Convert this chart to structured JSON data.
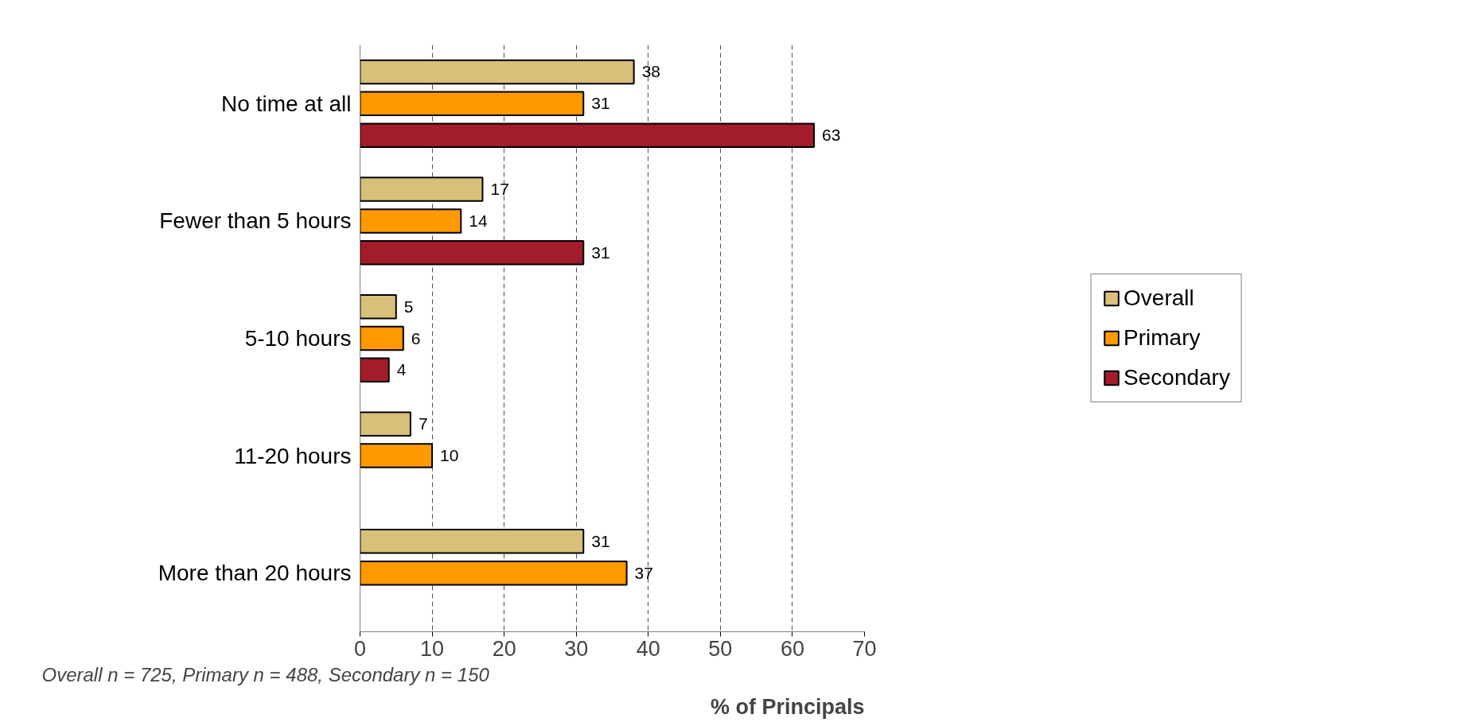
{
  "chart_data": {
    "type": "bar",
    "orientation": "horizontal",
    "categories": [
      "No time at all",
      "Fewer than 5 hours",
      "5-10 hours",
      "11-20 hours",
      "More than 20 hours"
    ],
    "series": [
      {
        "name": "Overall",
        "color": "#d9c07a",
        "values": [
          38,
          17,
          5,
          7,
          31
        ]
      },
      {
        "name": "Primary",
        "color": "#ff9900",
        "values": [
          31,
          14,
          6,
          10,
          37
        ]
      },
      {
        "name": "Secondary",
        "color": "#a31c2b",
        "values": [
          63,
          31,
          4,
          null,
          null
        ]
      }
    ],
    "xlim": [
      0,
      70
    ],
    "xticks": [
      0,
      10,
      20,
      30,
      40,
      50,
      60,
      70
    ],
    "xlabel": "% of Principals",
    "annotations": [
      "Overall n = 725, Primary n = 488, Secondary n = 150"
    ],
    "grid": "x",
    "legend": "right",
    "data_labels": true
  }
}
